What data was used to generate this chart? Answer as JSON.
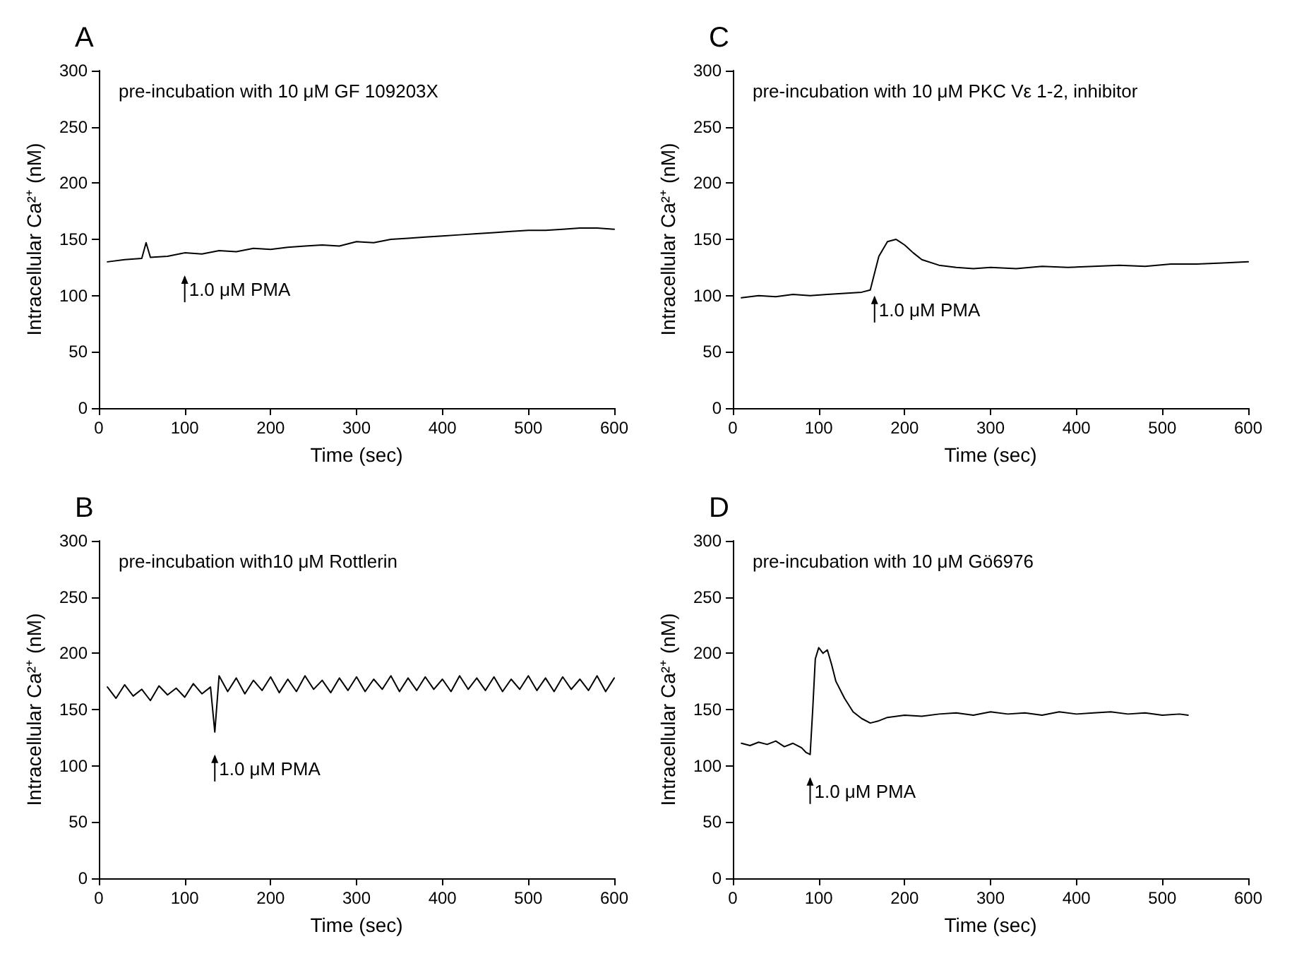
{
  "chart_data": [
    {
      "type": "line",
      "title": "A",
      "xlabel": "Time (sec)",
      "ylabel": "Intracellular Ca²⁺ (nM)",
      "xlim": [
        0,
        600
      ],
      "xticks": [
        0,
        100,
        200,
        300,
        400,
        500,
        600
      ],
      "ylim": [
        0,
        300
      ],
      "yticks": [
        0,
        50,
        100,
        150,
        200,
        250,
        300
      ],
      "grid": false,
      "marker": "none",
      "line_style": "solid",
      "annotations": [
        "pre-incubation with 10 μM GF 109203X",
        {
          "text": "1.0 μM PMA",
          "x": 100,
          "y": 138
        }
      ],
      "series": [
        {
          "color": "#000000",
          "x": [
            10,
            30,
            50,
            55,
            60,
            80,
            100,
            120,
            140,
            160,
            180,
            200,
            220,
            240,
            260,
            280,
            300,
            320,
            340,
            360,
            380,
            400,
            420,
            440,
            460,
            480,
            500,
            520,
            540,
            560,
            580,
            600
          ],
          "values": [
            130,
            132,
            133,
            147,
            134,
            135,
            138,
            137,
            140,
            139,
            142,
            141,
            143,
            144,
            145,
            144,
            148,
            147,
            150,
            151,
            152,
            153,
            154,
            155,
            156,
            157,
            158,
            158,
            159,
            160,
            160,
            159
          ]
        }
      ]
    },
    {
      "type": "line",
      "title": "C",
      "xlabel": "Time (sec)",
      "ylabel": "Intracellular Ca²⁺ (nM)",
      "xlim": [
        0,
        600
      ],
      "xticks": [
        0,
        100,
        200,
        300,
        400,
        500,
        600
      ],
      "ylim": [
        0,
        300
      ],
      "yticks": [
        0,
        50,
        100,
        150,
        200,
        250,
        300
      ],
      "grid": false,
      "marker": "none",
      "line_style": "solid",
      "annotations": [
        "pre-incubation with 10 μM PKC Vε 1-2, inhibitor",
        {
          "text": "1.0 μM PMA",
          "x": 165,
          "y": 120
        }
      ],
      "series": [
        {
          "color": "#000000",
          "x": [
            10,
            30,
            50,
            70,
            90,
            110,
            130,
            150,
            160,
            165,
            170,
            180,
            190,
            200,
            210,
            220,
            240,
            260,
            280,
            300,
            330,
            360,
            390,
            420,
            450,
            480,
            510,
            540,
            570,
            600
          ],
          "values": [
            98,
            100,
            99,
            101,
            100,
            101,
            102,
            103,
            105,
            120,
            135,
            148,
            150,
            145,
            138,
            132,
            127,
            125,
            124,
            125,
            124,
            126,
            125,
            126,
            127,
            126,
            128,
            128,
            129,
            130
          ]
        }
      ]
    },
    {
      "type": "line",
      "title": "B",
      "xlabel": "Time (sec)",
      "ylabel": "Intracellular Ca²⁺ (nM)",
      "xlim": [
        0,
        600
      ],
      "xticks": [
        0,
        100,
        200,
        300,
        400,
        500,
        600
      ],
      "ylim": [
        0,
        300
      ],
      "yticks": [
        0,
        50,
        100,
        150,
        200,
        250,
        300
      ],
      "grid": false,
      "marker": "none",
      "line_style": "solid",
      "annotations": [
        "pre-incubation with10 μM Rottlerin",
        {
          "text": "1.0 μM PMA",
          "x": 135,
          "y": 130
        }
      ],
      "series": [
        {
          "color": "#000000",
          "x": [
            10,
            20,
            30,
            40,
            50,
            60,
            70,
            80,
            90,
            100,
            110,
            120,
            130,
            135,
            140,
            150,
            160,
            170,
            180,
            190,
            200,
            210,
            220,
            230,
            240,
            250,
            260,
            270,
            280,
            290,
            300,
            310,
            320,
            330,
            340,
            350,
            360,
            370,
            380,
            390,
            400,
            410,
            420,
            430,
            440,
            450,
            460,
            470,
            480,
            490,
            500,
            510,
            520,
            530,
            540,
            550,
            560,
            570,
            580,
            590,
            600
          ],
          "values": [
            170,
            160,
            172,
            162,
            168,
            158,
            171,
            163,
            169,
            161,
            173,
            164,
            170,
            130,
            180,
            166,
            178,
            164,
            176,
            167,
            179,
            165,
            177,
            166,
            180,
            168,
            176,
            165,
            178,
            167,
            179,
            166,
            177,
            168,
            180,
            166,
            178,
            167,
            179,
            168,
            177,
            166,
            180,
            168,
            178,
            167,
            179,
            166,
            177,
            168,
            180,
            167,
            178,
            166,
            179,
            168,
            177,
            167,
            180,
            166,
            178
          ]
        }
      ]
    },
    {
      "type": "line",
      "title": "D",
      "xlabel": "Time (sec)",
      "ylabel": "Intracellular Ca²⁺ (nM)",
      "xlim": [
        0,
        600
      ],
      "xticks": [
        0,
        100,
        200,
        300,
        400,
        500,
        600
      ],
      "ylim": [
        0,
        300
      ],
      "yticks": [
        0,
        50,
        100,
        150,
        200,
        250,
        300
      ],
      "grid": false,
      "marker": "none",
      "line_style": "solid",
      "annotations": [
        "pre-incubation with 10 μM Gö6976",
        {
          "text": "1.0 μM PMA",
          "x": 90,
          "y": 110
        }
      ],
      "series": [
        {
          "color": "#000000",
          "x": [
            10,
            20,
            30,
            40,
            50,
            60,
            70,
            80,
            85,
            90,
            93,
            96,
            100,
            105,
            110,
            115,
            120,
            130,
            140,
            150,
            160,
            170,
            180,
            200,
            220,
            240,
            260,
            280,
            300,
            320,
            340,
            360,
            380,
            400,
            420,
            440,
            460,
            480,
            500,
            520,
            530
          ],
          "values": [
            120,
            118,
            121,
            119,
            122,
            117,
            120,
            116,
            112,
            110,
            150,
            195,
            205,
            200,
            203,
            190,
            175,
            160,
            148,
            142,
            138,
            140,
            143,
            145,
            144,
            146,
            147,
            145,
            148,
            146,
            147,
            145,
            148,
            146,
            147,
            148,
            146,
            147,
            145,
            146,
            145
          ]
        }
      ]
    }
  ]
}
